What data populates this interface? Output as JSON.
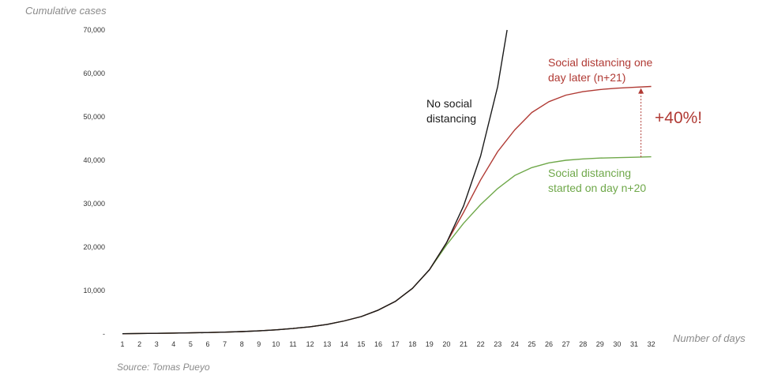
{
  "chart_data": {
    "type": "line",
    "ylabel": "Cumulative cases",
    "xlabel": "Number of days",
    "source": "Source: Tomas Pueyo",
    "ylim": [
      0,
      70000
    ],
    "yticks": [
      0,
      10000,
      20000,
      30000,
      40000,
      50000,
      60000,
      70000
    ],
    "ytick_labels": [
      "-",
      "10,000",
      "20,000",
      "30,000",
      "40,000",
      "50,000",
      "60,000",
      "70,000"
    ],
    "x": [
      1,
      2,
      3,
      4,
      5,
      6,
      7,
      8,
      9,
      10,
      11,
      12,
      13,
      14,
      15,
      16,
      17,
      18,
      19,
      20,
      21,
      22,
      23,
      24,
      25,
      26,
      27,
      28,
      29,
      30,
      31,
      32
    ],
    "grid": false,
    "series": [
      {
        "name": "No social distancing",
        "color": "#1a1a1a",
        "points": [
          [
            1,
            60
          ],
          [
            2,
            100
          ],
          [
            3,
            150
          ],
          [
            4,
            200
          ],
          [
            5,
            250
          ],
          [
            6,
            330
          ],
          [
            7,
            420
          ],
          [
            8,
            540
          ],
          [
            9,
            700
          ],
          [
            10,
            950
          ],
          [
            11,
            1250
          ],
          [
            12,
            1650
          ],
          [
            13,
            2200
          ],
          [
            14,
            3000
          ],
          [
            15,
            4000
          ],
          [
            16,
            5500
          ],
          [
            17,
            7500
          ],
          [
            18,
            10500
          ],
          [
            19,
            14800
          ],
          [
            20,
            21000
          ],
          [
            21,
            29500
          ],
          [
            22,
            41000
          ],
          [
            23,
            57000
          ],
          [
            23.55,
            70000
          ]
        ]
      },
      {
        "name": "Social distancing one day later (n+21)",
        "color": "#b03a34",
        "points": [
          [
            1,
            60
          ],
          [
            2,
            100
          ],
          [
            3,
            150
          ],
          [
            4,
            200
          ],
          [
            5,
            250
          ],
          [
            6,
            330
          ],
          [
            7,
            420
          ],
          [
            8,
            540
          ],
          [
            9,
            700
          ],
          [
            10,
            950
          ],
          [
            11,
            1250
          ],
          [
            12,
            1650
          ],
          [
            13,
            2200
          ],
          [
            14,
            3000
          ],
          [
            15,
            4000
          ],
          [
            16,
            5500
          ],
          [
            17,
            7500
          ],
          [
            18,
            10500
          ],
          [
            19,
            14800
          ],
          [
            20,
            21000
          ],
          [
            21,
            28000
          ],
          [
            22,
            35500
          ],
          [
            23,
            42000
          ],
          [
            24,
            47000
          ],
          [
            25,
            51000
          ],
          [
            26,
            53500
          ],
          [
            27,
            55000
          ],
          [
            28,
            55800
          ],
          [
            29,
            56300
          ],
          [
            30,
            56600
          ],
          [
            31,
            56800
          ],
          [
            32,
            57000
          ]
        ]
      },
      {
        "name": "Social distancing started on day n+20",
        "color": "#6fa84a",
        "points": [
          [
            1,
            60
          ],
          [
            2,
            100
          ],
          [
            3,
            150
          ],
          [
            4,
            200
          ],
          [
            5,
            250
          ],
          [
            6,
            330
          ],
          [
            7,
            420
          ],
          [
            8,
            540
          ],
          [
            9,
            700
          ],
          [
            10,
            950
          ],
          [
            11,
            1250
          ],
          [
            12,
            1650
          ],
          [
            13,
            2200
          ],
          [
            14,
            3000
          ],
          [
            15,
            4000
          ],
          [
            16,
            5500
          ],
          [
            17,
            7500
          ],
          [
            18,
            10500
          ],
          [
            19,
            14800
          ],
          [
            20,
            20500
          ],
          [
            21,
            25500
          ],
          [
            22,
            29800
          ],
          [
            23,
            33500
          ],
          [
            24,
            36500
          ],
          [
            25,
            38300
          ],
          [
            26,
            39400
          ],
          [
            27,
            40000
          ],
          [
            28,
            40300
          ],
          [
            29,
            40500
          ],
          [
            30,
            40600
          ],
          [
            31,
            40700
          ],
          [
            32,
            40800
          ]
        ]
      }
    ],
    "annotations": {
      "black": [
        "No social",
        "distancing"
      ],
      "red": [
        "Social distancing one",
        "day later (n+21)"
      ],
      "green": [
        "Social distancing",
        "started on day n+20"
      ],
      "increase": "+40%!",
      "arrow": {
        "x": 31.4,
        "from": 40700,
        "to": 56800,
        "color": "#b03a34"
      }
    }
  }
}
